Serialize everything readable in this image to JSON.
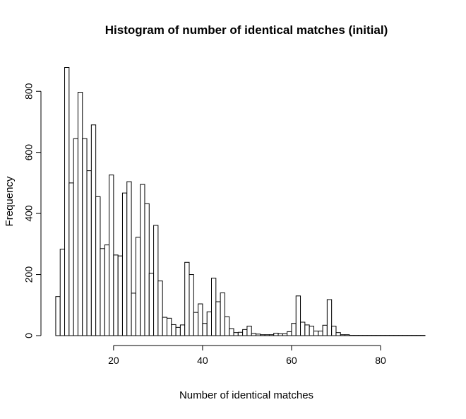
{
  "chart_data": {
    "type": "bar",
    "title": "Histogram of number of identical matches (initial)",
    "xlabel": "Number of identical matches",
    "ylabel": "Frequency",
    "x_ticks": [
      20,
      40,
      60,
      80
    ],
    "x_tick_labels": [
      "20",
      "40",
      "60",
      "80"
    ],
    "y_ticks": [
      0,
      200,
      400,
      600,
      800
    ],
    "y_tick_labels": [
      "0",
      "200",
      "400",
      "600",
      "800"
    ],
    "x_axis_range": [
      20,
      80
    ],
    "y_axis_range": [
      0,
      800
    ],
    "xlim": [
      5.9,
      90
    ],
    "ylim": [
      0,
      900
    ],
    "bin_width": 1,
    "bins_start": [
      7,
      8,
      9,
      10,
      11,
      12,
      13,
      14,
      15,
      16,
      17,
      18,
      19,
      20,
      21,
      22,
      23,
      24,
      25,
      26,
      27,
      28,
      29,
      30,
      31,
      32,
      33,
      34,
      35,
      36,
      37,
      38,
      39,
      40,
      41,
      42,
      43,
      44,
      45,
      46,
      47,
      48,
      49,
      50,
      51,
      52,
      53,
      54,
      55,
      56,
      57,
      58,
      59,
      60,
      61,
      62,
      63,
      64,
      65,
      66,
      67,
      68,
      69,
      70,
      71,
      72,
      73,
      74,
      75,
      76,
      77,
      78,
      79,
      80,
      81,
      82,
      83,
      84,
      85,
      86,
      87,
      88,
      89
    ],
    "values": [
      128,
      283,
      878,
      500,
      645,
      797,
      645,
      540,
      690,
      455,
      285,
      297,
      526,
      264,
      261,
      467,
      504,
      139,
      322,
      495,
      432,
      204,
      361,
      179,
      60,
      57,
      36,
      27,
      35,
      240,
      200,
      76,
      104,
      40,
      78,
      188,
      111,
      140,
      62,
      23,
      10,
      11,
      20,
      31,
      7,
      5,
      3,
      3,
      3,
      8,
      6,
      6,
      13,
      40,
      130,
      44,
      35,
      31,
      15,
      15,
      34,
      118,
      31,
      10,
      3,
      3,
      1,
      1,
      1,
      1,
      1,
      1,
      1,
      1,
      1,
      1,
      1,
      1,
      1,
      1,
      1,
      1,
      1
    ],
    "grid": false,
    "legend": "none",
    "bar_fill": "#ffffff",
    "bar_stroke": "#000000"
  }
}
